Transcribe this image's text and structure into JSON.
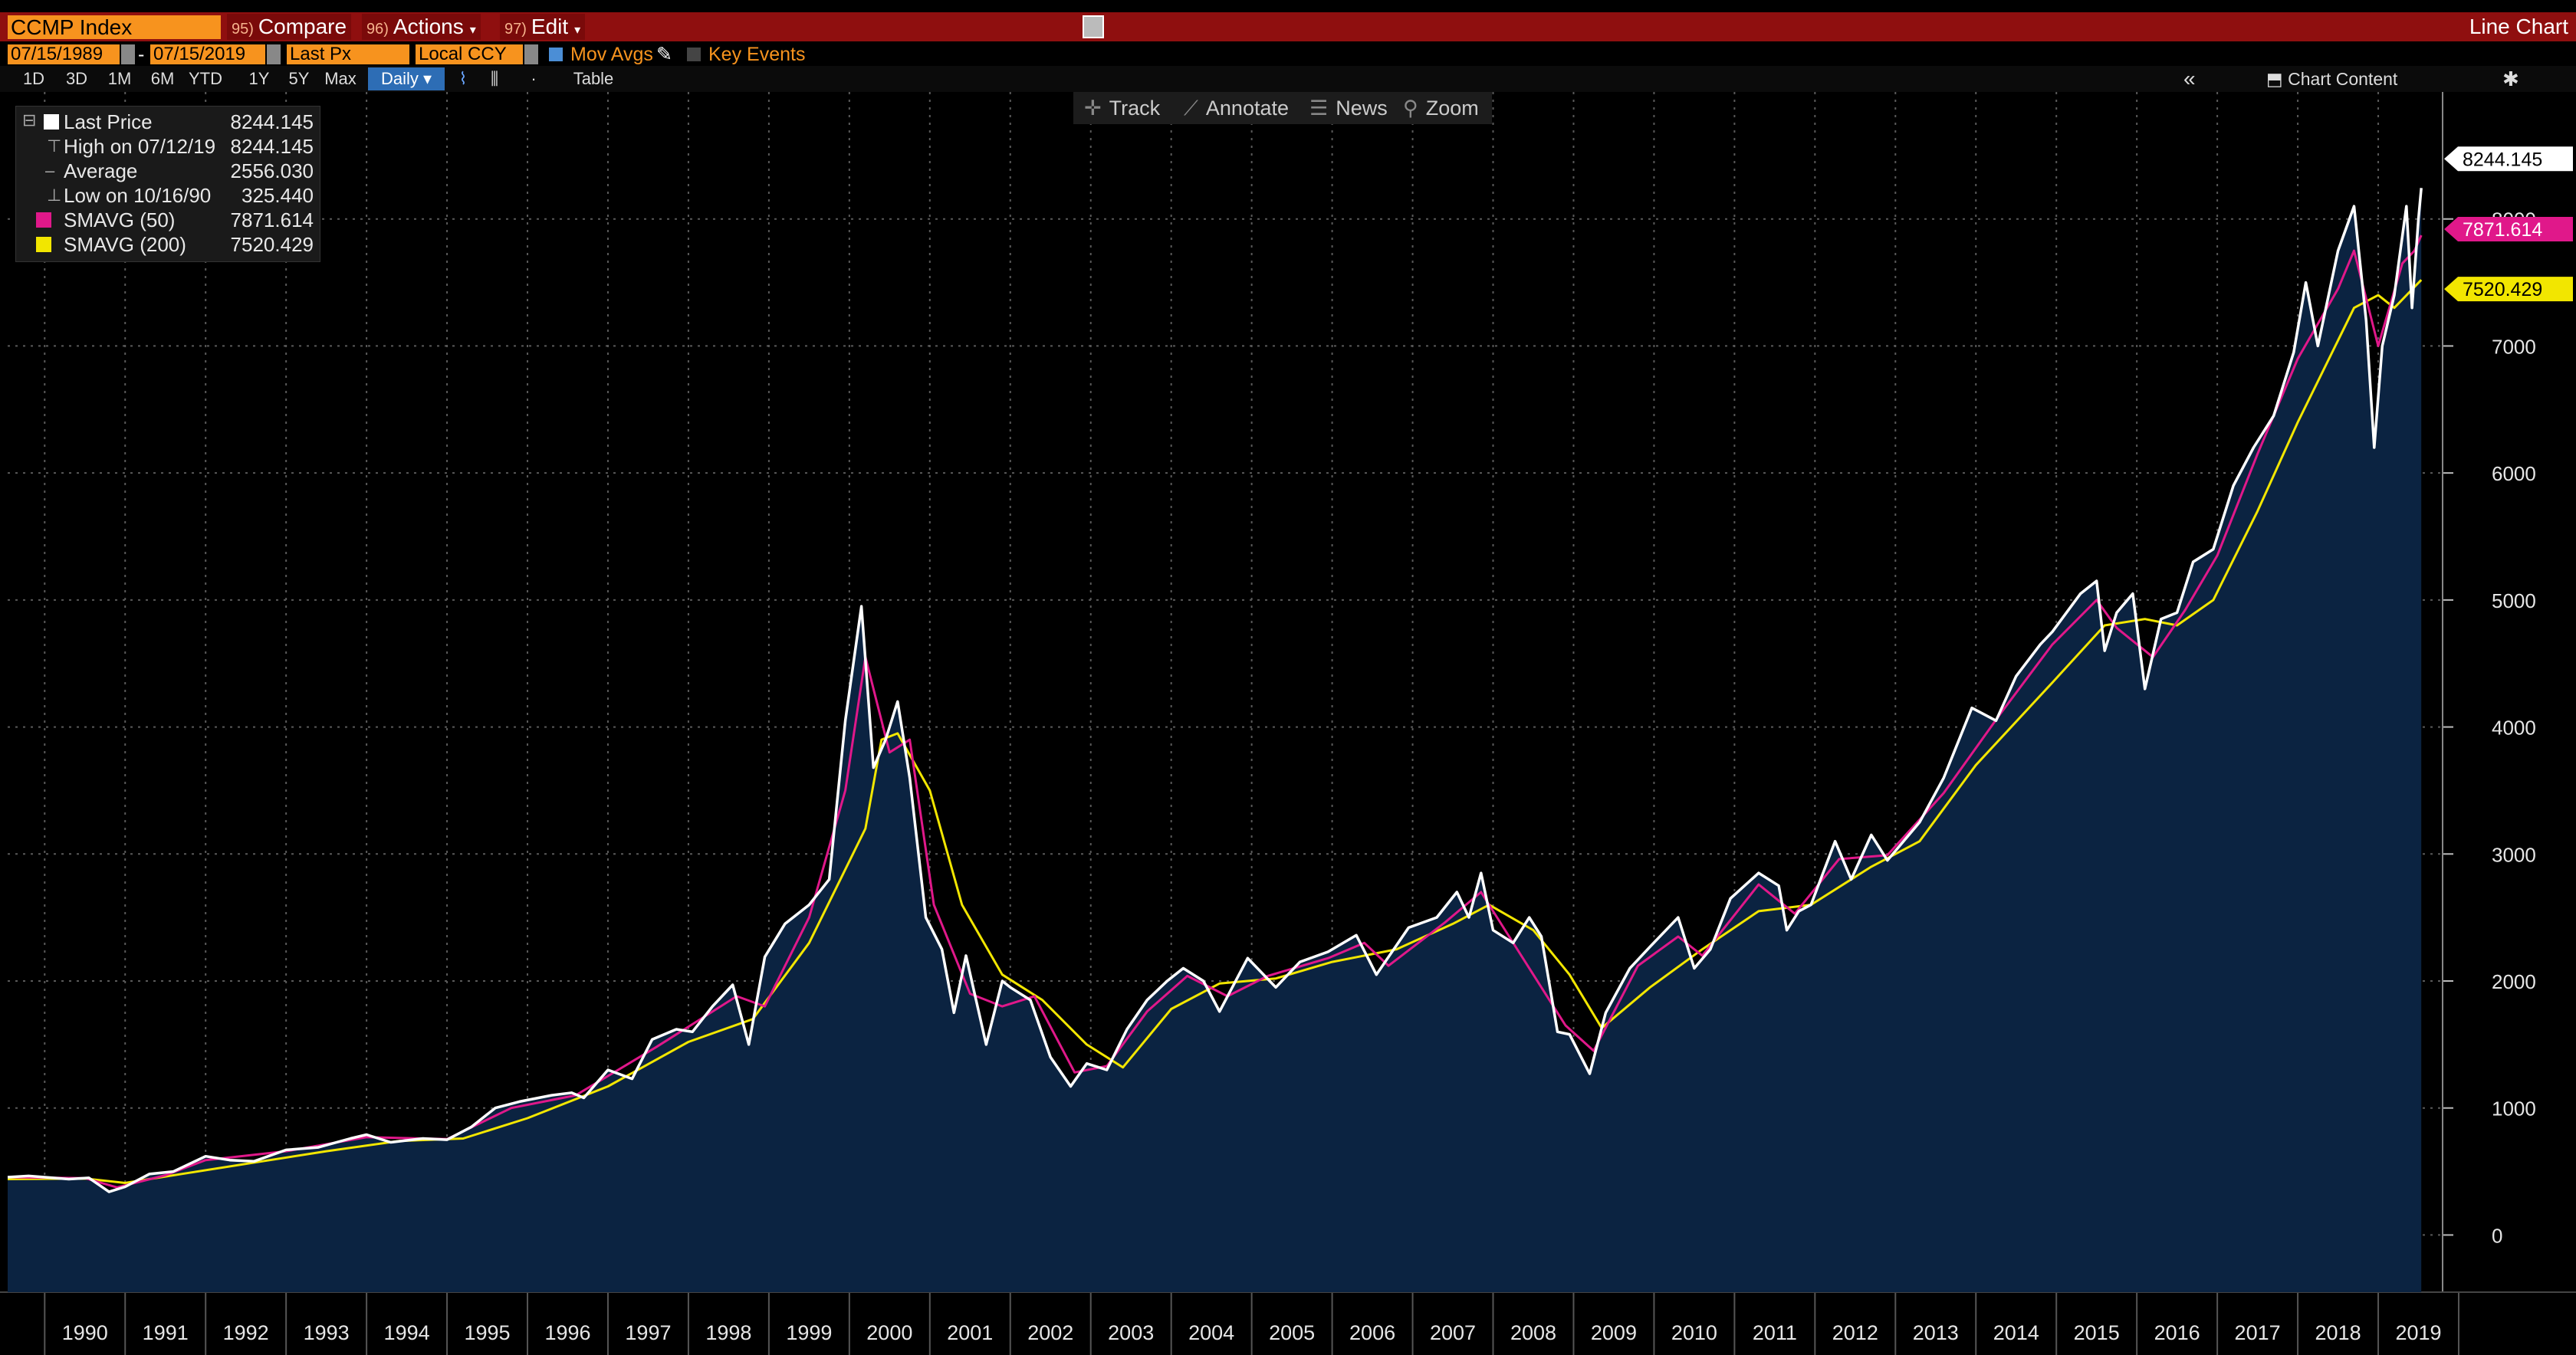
{
  "header": {
    "ticker": "CCMP Index",
    "buttons": [
      {
        "num": "95)",
        "label": "Compare"
      },
      {
        "num": "96)",
        "label": "Actions"
      },
      {
        "num": "97)",
        "label": "Edit"
      }
    ],
    "chart_title": "Line Chart"
  },
  "options": {
    "start_date": "07/15/1989",
    "end_date": "07/15/2019",
    "price_field": "Last Px",
    "currency": "Local CCY",
    "mov_avgs_label": "Mov Avgs",
    "key_events_label": "Key Events"
  },
  "periods": [
    "1D",
    "3D",
    "1M",
    "6M",
    "YTD",
    "1Y",
    "5Y",
    "Max"
  ],
  "frequency": "Daily",
  "table_label": "Table",
  "chart_content_label": "Chart Content",
  "tools": [
    "Track",
    "Annotate",
    "News",
    "Zoom"
  ],
  "legend": [
    {
      "label": "Last Price",
      "value": "8244.145",
      "color": "#ffffff"
    },
    {
      "label": "High on 07/12/19",
      "value": "8244.145",
      "color": ""
    },
    {
      "label": "Average",
      "value": "2556.030",
      "color": ""
    },
    {
      "label": "Low on 10/16/90",
      "value": "325.440",
      "color": ""
    },
    {
      "label": "SMAVG (50)",
      "value": "7871.614",
      "color": "#e0188a"
    },
    {
      "label": "SMAVG (200)",
      "value": "7520.429",
      "color": "#f2e600"
    }
  ],
  "last_value_tags": [
    {
      "value": "8244.145",
      "bg": "#ffffff",
      "fg": "#000000"
    },
    {
      "value": "7871.614",
      "bg": "#e0188a",
      "fg": "#ffffff"
    },
    {
      "value": "7520.429",
      "bg": "#f2e600",
      "fg": "#000000"
    }
  ],
  "chart_data": {
    "type": "line",
    "x_labels": [
      "1990",
      "1991",
      "1992",
      "1993",
      "1994",
      "1995",
      "1996",
      "1997",
      "1998",
      "1999",
      "2000",
      "2001",
      "2002",
      "2003",
      "2004",
      "2005",
      "2006",
      "2007",
      "2008",
      "2009",
      "2010",
      "2011",
      "2012",
      "2013",
      "2014",
      "2015",
      "2016",
      "2017",
      "2018",
      "2019"
    ],
    "y_ticks": [
      0,
      1000,
      2000,
      3000,
      4000,
      5000,
      6000,
      7000,
      8000
    ],
    "ylim": [
      -450,
      9000
    ],
    "grid": true,
    "colors": {
      "area": "#0b2341",
      "price": "#ffffff",
      "sma50": "#e0188a",
      "sma200": "#f2e600"
    },
    "series": [
      {
        "name": "Last Price",
        "points": [
          [
            1989.54,
            455
          ],
          [
            1989.8,
            465
          ],
          [
            1990.0,
            455
          ],
          [
            1990.3,
            440
          ],
          [
            1990.55,
            450
          ],
          [
            1990.8,
            340
          ],
          [
            1991.0,
            380
          ],
          [
            1991.3,
            480
          ],
          [
            1991.6,
            500
          ],
          [
            1992.0,
            620
          ],
          [
            1992.3,
            590
          ],
          [
            1992.6,
            580
          ],
          [
            1993.0,
            670
          ],
          [
            1993.4,
            690
          ],
          [
            1993.8,
            760
          ],
          [
            1994.0,
            790
          ],
          [
            1994.3,
            730
          ],
          [
            1994.7,
            760
          ],
          [
            1995.0,
            750
          ],
          [
            1995.3,
            850
          ],
          [
            1995.6,
            1000
          ],
          [
            1995.9,
            1050
          ],
          [
            1996.3,
            1100
          ],
          [
            1996.55,
            1120
          ],
          [
            1996.7,
            1080
          ],
          [
            1997.0,
            1300
          ],
          [
            1997.3,
            1230
          ],
          [
            1997.55,
            1540
          ],
          [
            1997.85,
            1620
          ],
          [
            1998.05,
            1600
          ],
          [
            1998.3,
            1800
          ],
          [
            1998.55,
            1970
          ],
          [
            1998.75,
            1500
          ],
          [
            1998.95,
            2190
          ],
          [
            1999.2,
            2450
          ],
          [
            1999.5,
            2600
          ],
          [
            1999.75,
            2800
          ],
          [
            1999.95,
            4050
          ],
          [
            2000.15,
            4950
          ],
          [
            2000.3,
            3680
          ],
          [
            2000.45,
            3900
          ],
          [
            2000.6,
            4200
          ],
          [
            2000.75,
            3600
          ],
          [
            2000.95,
            2500
          ],
          [
            2001.15,
            2250
          ],
          [
            2001.3,
            1750
          ],
          [
            2001.45,
            2200
          ],
          [
            2001.7,
            1500
          ],
          [
            2001.9,
            2000
          ],
          [
            2002.0,
            1950
          ],
          [
            2002.25,
            1850
          ],
          [
            2002.5,
            1400
          ],
          [
            2002.75,
            1170
          ],
          [
            2002.95,
            1350
          ],
          [
            2003.2,
            1300
          ],
          [
            2003.45,
            1620
          ],
          [
            2003.7,
            1850
          ],
          [
            2003.95,
            2000
          ],
          [
            2004.15,
            2100
          ],
          [
            2004.4,
            2000
          ],
          [
            2004.6,
            1760
          ],
          [
            2004.95,
            2180
          ],
          [
            2005.3,
            1950
          ],
          [
            2005.6,
            2150
          ],
          [
            2005.95,
            2230
          ],
          [
            2006.3,
            2360
          ],
          [
            2006.55,
            2050
          ],
          [
            2006.95,
            2420
          ],
          [
            2007.3,
            2500
          ],
          [
            2007.55,
            2700
          ],
          [
            2007.7,
            2500
          ],
          [
            2007.85,
            2850
          ],
          [
            2008.0,
            2400
          ],
          [
            2008.25,
            2300
          ],
          [
            2008.45,
            2500
          ],
          [
            2008.6,
            2350
          ],
          [
            2008.8,
            1600
          ],
          [
            2008.95,
            1580
          ],
          [
            2009.2,
            1270
          ],
          [
            2009.4,
            1750
          ],
          [
            2009.7,
            2100
          ],
          [
            2009.95,
            2270
          ],
          [
            2010.3,
            2500
          ],
          [
            2010.5,
            2100
          ],
          [
            2010.7,
            2250
          ],
          [
            2010.95,
            2650
          ],
          [
            2011.3,
            2850
          ],
          [
            2011.55,
            2750
          ],
          [
            2011.65,
            2400
          ],
          [
            2011.8,
            2550
          ],
          [
            2011.95,
            2600
          ],
          [
            2012.25,
            3100
          ],
          [
            2012.45,
            2800
          ],
          [
            2012.7,
            3150
          ],
          [
            2012.9,
            2950
          ],
          [
            2013.3,
            3250
          ],
          [
            2013.6,
            3600
          ],
          [
            2013.95,
            4150
          ],
          [
            2014.25,
            4050
          ],
          [
            2014.5,
            4400
          ],
          [
            2014.8,
            4650
          ],
          [
            2014.95,
            4750
          ],
          [
            2015.3,
            5050
          ],
          [
            2015.5,
            5150
          ],
          [
            2015.6,
            4600
          ],
          [
            2015.75,
            4900
          ],
          [
            2015.95,
            5050
          ],
          [
            2016.1,
            4300
          ],
          [
            2016.3,
            4850
          ],
          [
            2016.5,
            4900
          ],
          [
            2016.7,
            5300
          ],
          [
            2016.95,
            5400
          ],
          [
            2017.2,
            5900
          ],
          [
            2017.45,
            6200
          ],
          [
            2017.7,
            6450
          ],
          [
            2017.95,
            6950
          ],
          [
            2018.1,
            7500
          ],
          [
            2018.25,
            7000
          ],
          [
            2018.5,
            7750
          ],
          [
            2018.7,
            8100
          ],
          [
            2018.85,
            7200
          ],
          [
            2018.95,
            6200
          ],
          [
            2019.05,
            7000
          ],
          [
            2019.2,
            7400
          ],
          [
            2019.35,
            8100
          ],
          [
            2019.42,
            7300
          ],
          [
            2019.5,
            8000
          ],
          [
            2019.535,
            8244.145
          ]
        ]
      },
      {
        "name": "SMAVG (50)",
        "points": [
          [
            1989.54,
            455
          ],
          [
            1990.5,
            448
          ],
          [
            1990.9,
            375
          ],
          [
            1991.5,
            470
          ],
          [
            1992.0,
            590
          ],
          [
            1993.0,
            660
          ],
          [
            1994.0,
            770
          ],
          [
            1995.0,
            755
          ],
          [
            1995.8,
            1000
          ],
          [
            1996.6,
            1100
          ],
          [
            1997.6,
            1480
          ],
          [
            1998.6,
            1880
          ],
          [
            1998.95,
            1800
          ],
          [
            1999.5,
            2500
          ],
          [
            1999.95,
            3500
          ],
          [
            2000.2,
            4550
          ],
          [
            2000.5,
            3800
          ],
          [
            2000.75,
            3900
          ],
          [
            2001.05,
            2600
          ],
          [
            2001.5,
            1900
          ],
          [
            2001.9,
            1800
          ],
          [
            2002.3,
            1880
          ],
          [
            2002.8,
            1280
          ],
          [
            2003.2,
            1330
          ],
          [
            2003.7,
            1760
          ],
          [
            2004.2,
            2040
          ],
          [
            2004.7,
            1880
          ],
          [
            2005.2,
            2040
          ],
          [
            2005.95,
            2180
          ],
          [
            2006.4,
            2300
          ],
          [
            2006.7,
            2120
          ],
          [
            2007.4,
            2460
          ],
          [
            2007.85,
            2700
          ],
          [
            2008.2,
            2350
          ],
          [
            2008.9,
            1650
          ],
          [
            2009.25,
            1450
          ],
          [
            2009.8,
            2120
          ],
          [
            2010.3,
            2350
          ],
          [
            2010.6,
            2200
          ],
          [
            2011.3,
            2760
          ],
          [
            2011.75,
            2530
          ],
          [
            2012.3,
            2960
          ],
          [
            2012.9,
            2990
          ],
          [
            2013.6,
            3480
          ],
          [
            2014.3,
            4100
          ],
          [
            2014.95,
            4650
          ],
          [
            2015.5,
            5000
          ],
          [
            2015.75,
            4780
          ],
          [
            2016.2,
            4550
          ],
          [
            2016.6,
            4920
          ],
          [
            2017.0,
            5350
          ],
          [
            2017.5,
            6150
          ],
          [
            2018.0,
            6900
          ],
          [
            2018.5,
            7450
          ],
          [
            2018.7,
            7750
          ],
          [
            2019.0,
            7000
          ],
          [
            2019.3,
            7650
          ],
          [
            2019.45,
            7750
          ],
          [
            2019.535,
            7871.614
          ]
        ]
      },
      {
        "name": "SMAVG (200)",
        "points": [
          [
            1989.54,
            440
          ],
          [
            1990.5,
            445
          ],
          [
            1991.0,
            410
          ],
          [
            1991.8,
            490
          ],
          [
            1992.7,
            580
          ],
          [
            1993.5,
            660
          ],
          [
            1994.4,
            740
          ],
          [
            1995.2,
            760
          ],
          [
            1996.0,
            920
          ],
          [
            1997.0,
            1170
          ],
          [
            1998.0,
            1520
          ],
          [
            1998.8,
            1700
          ],
          [
            1999.5,
            2300
          ],
          [
            2000.2,
            3200
          ],
          [
            2000.4,
            3900
          ],
          [
            2000.6,
            3950
          ],
          [
            2001.0,
            3500
          ],
          [
            2001.4,
            2600
          ],
          [
            2001.9,
            2050
          ],
          [
            2002.4,
            1850
          ],
          [
            2002.95,
            1500
          ],
          [
            2003.4,
            1320
          ],
          [
            2004.0,
            1780
          ],
          [
            2004.6,
            1980
          ],
          [
            2005.3,
            2020
          ],
          [
            2006.0,
            2150
          ],
          [
            2006.8,
            2250
          ],
          [
            2007.5,
            2450
          ],
          [
            2007.95,
            2600
          ],
          [
            2008.5,
            2400
          ],
          [
            2008.95,
            2050
          ],
          [
            2009.35,
            1630
          ],
          [
            2009.95,
            1950
          ],
          [
            2010.6,
            2250
          ],
          [
            2011.3,
            2550
          ],
          [
            2011.95,
            2600
          ],
          [
            2012.7,
            2900
          ],
          [
            2013.3,
            3100
          ],
          [
            2014.0,
            3700
          ],
          [
            2014.95,
            4350
          ],
          [
            2015.6,
            4800
          ],
          [
            2016.1,
            4850
          ],
          [
            2016.5,
            4800
          ],
          [
            2016.95,
            5000
          ],
          [
            2017.5,
            5700
          ],
          [
            2018.0,
            6400
          ],
          [
            2018.7,
            7300
          ],
          [
            2019.0,
            7400
          ],
          [
            2019.2,
            7300
          ],
          [
            2019.535,
            7520.429
          ]
        ]
      }
    ]
  }
}
